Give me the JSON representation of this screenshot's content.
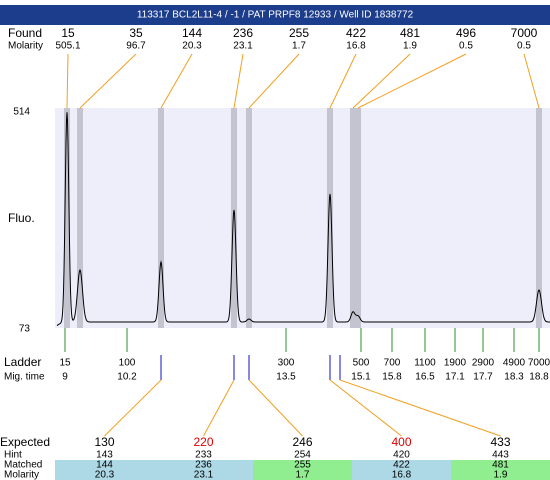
{
  "header": {
    "title": "113317  BCL2L11-4 / -1 / PAT PRPF8 12933 / Well ID 1838772"
  },
  "found": {
    "label": "Found",
    "sizes": [
      15,
      35,
      144,
      236,
      255,
      422,
      481,
      496,
      7000
    ],
    "molarity_label": "Molarity",
    "molarity": [
      505.1,
      96.7,
      20.3,
      23.1,
      1.7,
      16.8,
      1.9,
      0.5,
      0.5
    ]
  },
  "plot": {
    "y_label": "Fluo.",
    "y_max": 514,
    "y_min": 73,
    "background": "#eeeefa",
    "band_color": "#c4c4d0"
  },
  "ladder": {
    "label": "Ladder",
    "sizes": [
      15,
      100,
      300,
      500,
      700,
      1100,
      1900,
      2900,
      4900,
      7000
    ],
    "time_label": "Mig. time",
    "times": [
      9,
      10.2,
      13.5,
      15.1,
      15.8,
      16.5,
      17.1,
      17.7,
      18.3,
      18.8
    ],
    "color": "#2e8b2e"
  },
  "expected": {
    "label": "Expected",
    "sizes": [
      130,
      220,
      246,
      400,
      433
    ],
    "colors": [
      "#000000",
      "#dd0000",
      "#000000",
      "#dd0000",
      "#000000"
    ],
    "hint_label": "Hint",
    "hints": [
      143,
      233,
      254,
      420,
      443
    ],
    "matched_label": "Matched",
    "matched": [
      144,
      236,
      255,
      422,
      481
    ],
    "molarity_label": "Molarity",
    "molarity": [
      20.3,
      23.1,
      1.7,
      16.8,
      1.9
    ],
    "cell_colors": [
      "#add8e6",
      "#add8e6",
      "#90ee90",
      "#add8e6",
      "#90ee90"
    ]
  }
}
